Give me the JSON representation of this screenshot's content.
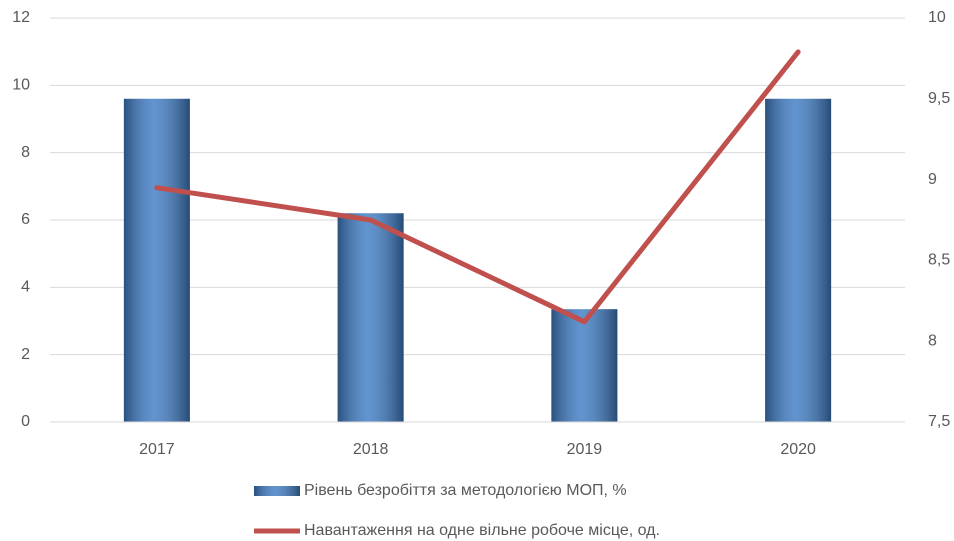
{
  "chart_data": {
    "type": "bar-line",
    "categories": [
      "2017",
      "2018",
      "2019",
      "2020"
    ],
    "series": [
      {
        "name": "Рівень безробіття за методологією МОП, %",
        "type": "bar",
        "color": "#3f7cc4",
        "values": [
          9.6,
          6.2,
          3.35,
          9.6
        ]
      },
      {
        "name": "Навантаження на одне вільне робоче місце, од.",
        "type": "line",
        "axis": "y2",
        "color": "#c0504d",
        "values": [
          8.95,
          8.75,
          8.12,
          9.79
        ]
      }
    ],
    "ylim": [
      0,
      12
    ],
    "yticks": [
      0,
      2,
      4,
      6,
      8,
      10,
      12
    ],
    "y2lim": [
      7.5,
      10
    ],
    "y2ticks": [
      {
        "value": 7.5,
        "label": "7,5"
      },
      8,
      {
        "value": 8.5,
        "label": "8,5"
      },
      9,
      {
        "value": 9.5,
        "label": "9,5"
      },
      10
    ],
    "grid": true,
    "legend": "bottom"
  }
}
